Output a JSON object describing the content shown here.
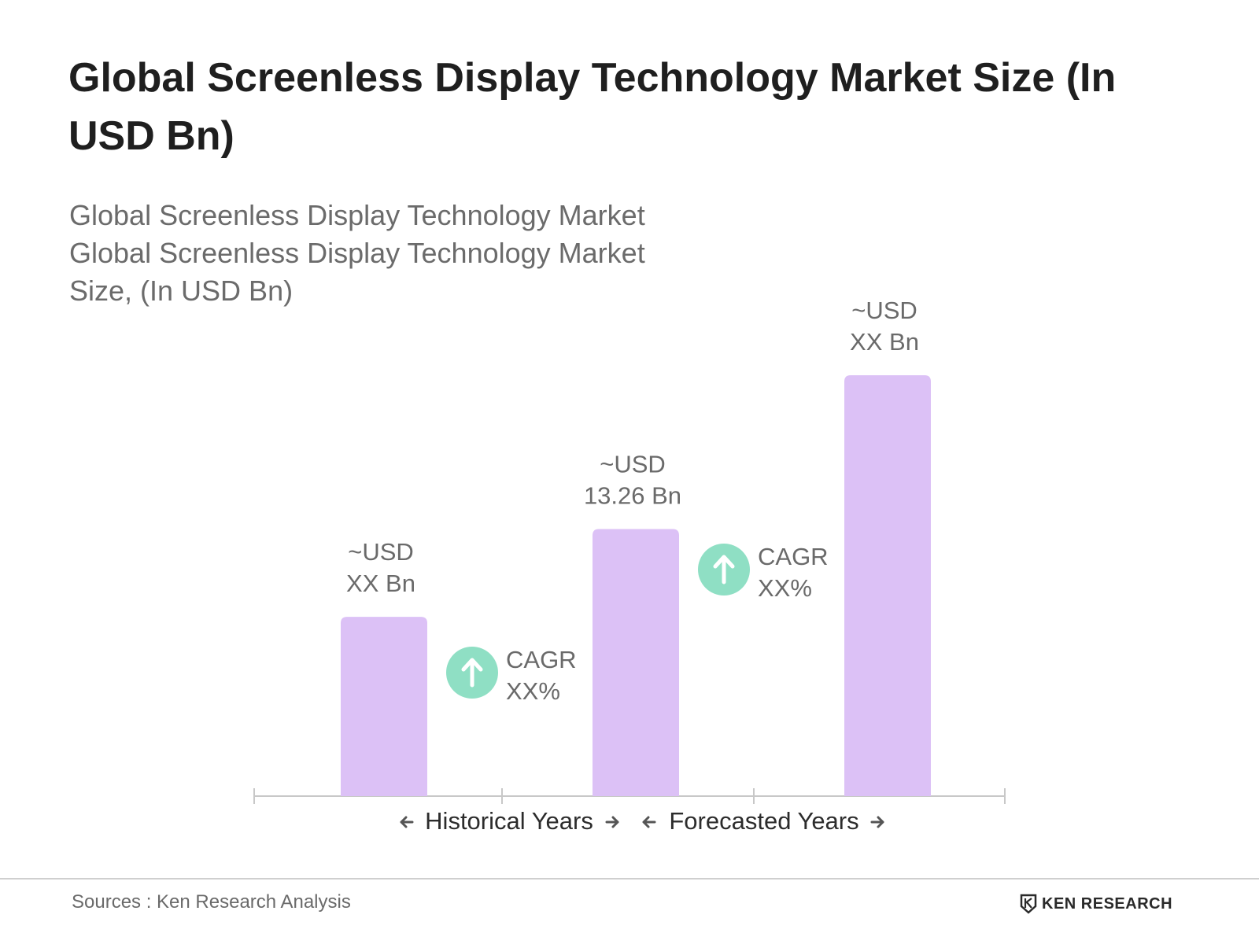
{
  "title": "Global Screenless Display Technology Market Size (In USD Bn)",
  "subtitle_lines": [
    "Global Screenless Display Technology Market",
    "Global Screenless Display Technology Market",
    "Size, (In USD Bn)"
  ],
  "chart_data": {
    "type": "bar",
    "categories": [
      "",
      "",
      ""
    ],
    "values": [
      8.9,
      13.26,
      20.9
    ],
    "ylim": [
      0,
      25
    ],
    "grid": false,
    "bar_labels": [
      [
        "~USD",
        "XX Bn"
      ],
      [
        "~USD",
        "13.26 Bn"
      ],
      [
        "~USD",
        "XX Bn"
      ]
    ],
    "cagr_annotations": [
      {
        "label": "CAGR",
        "value": "XX%"
      },
      {
        "label": "CAGR",
        "value": "XX%"
      }
    ],
    "period_labels": [
      "Historical Years",
      "Forecasted Years"
    ]
  },
  "colors": {
    "bar": "#dcc1f6",
    "cagr_circle": "#8fdfc4",
    "axis": "#c8c8c8",
    "label_text": "#6a6a6a",
    "period_text": "#2c2c2c",
    "arrow": "#555555"
  },
  "icons": {
    "cagr": "arrow-up-circle-icon",
    "period_left": "arrow-left-icon",
    "period_right": "arrow-right-icon",
    "logo": "ken-research-logo-icon"
  },
  "footer": {
    "source": "Sources : Ken Research Analysis",
    "logo_text": "KEN RESEARCH"
  }
}
